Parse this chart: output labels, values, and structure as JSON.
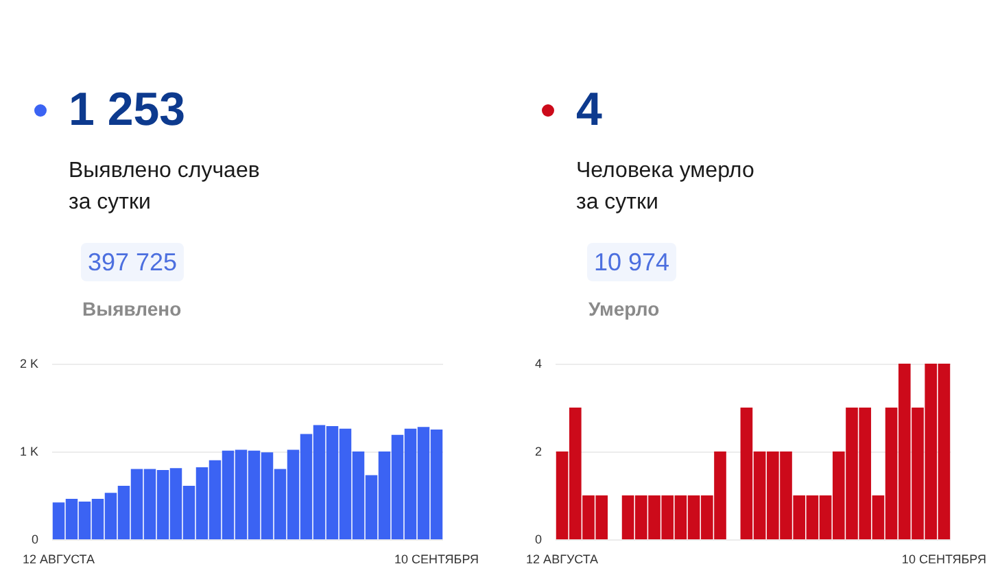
{
  "chart_data": [
    {
      "type": "bar",
      "title": "1 253",
      "subtitle": "Выявлено случаев за сутки",
      "annotations": [
        "397 725",
        "Выявлено"
      ],
      "categories": [
        "12 АВГУСТА",
        null,
        null,
        null,
        null,
        null,
        null,
        null,
        null,
        null,
        null,
        null,
        null,
        null,
        null,
        null,
        null,
        null,
        null,
        null,
        null,
        null,
        null,
        null,
        null,
        null,
        null,
        null,
        null,
        "10 СЕНТЯБРЯ"
      ],
      "values": [
        420,
        460,
        430,
        460,
        530,
        610,
        800,
        800,
        790,
        810,
        610,
        820,
        900,
        1010,
        1020,
        1010,
        990,
        800,
        1020,
        1200,
        1300,
        1290,
        1260,
        1000,
        730,
        1000,
        1190,
        1260,
        1280,
        1250
      ],
      "color": "#3b63f3",
      "ylim": [
        0,
        2000
      ],
      "yticks": [
        {
          "value": 0,
          "label": "0"
        },
        {
          "value": 1000,
          "label": "1 K"
        },
        {
          "value": 2000,
          "label": "2 K"
        }
      ],
      "grid": "y"
    },
    {
      "type": "bar",
      "title": "4",
      "subtitle": "Человека умерло за сутки",
      "annotations": [
        "10 974",
        "Умерло"
      ],
      "categories": [
        "12 АВГУСТА",
        null,
        null,
        null,
        null,
        null,
        null,
        null,
        null,
        null,
        null,
        null,
        null,
        null,
        null,
        null,
        null,
        null,
        null,
        null,
        null,
        null,
        null,
        null,
        null,
        null,
        null,
        null,
        null,
        "10 СЕНТЯБРЯ"
      ],
      "values": [
        2,
        3,
        1,
        1,
        0,
        1,
        1,
        1,
        1,
        1,
        1,
        1,
        2,
        0,
        3,
        2,
        2,
        2,
        1,
        1,
        1,
        2,
        3,
        3,
        1,
        3,
        4,
        3,
        4,
        4
      ],
      "color": "#cc0a1a",
      "ylim": [
        0,
        4
      ],
      "yticks": [
        0,
        2,
        4
      ],
      "grid": "y"
    }
  ]
}
